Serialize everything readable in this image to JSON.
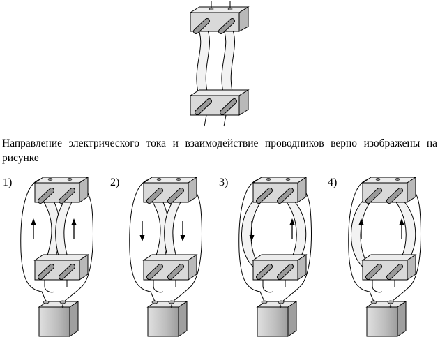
{
  "question": {
    "text": "Направление электрического тока и взаимодействие проводников верно изображены на рисунке"
  },
  "options": [
    {
      "label": "1)",
      "arrows": [
        "up",
        "up"
      ],
      "strip_shape": "inward"
    },
    {
      "label": "2)",
      "arrows": [
        "down",
        "down"
      ],
      "strip_shape": "inward"
    },
    {
      "label": "3)",
      "arrows": [
        "down",
        "up"
      ],
      "strip_shape": "outward"
    },
    {
      "label": "4)",
      "arrows": [
        "up",
        "up"
      ],
      "strip_shape": "outward"
    }
  ],
  "battery": {
    "minus": "–",
    "plus": "+"
  },
  "colors": {
    "stroke": "#000000",
    "block": "#d9d9d9",
    "strip": "#f2f2f2",
    "rod": "#9a9a9a",
    "battery": "#cfcfcf"
  }
}
